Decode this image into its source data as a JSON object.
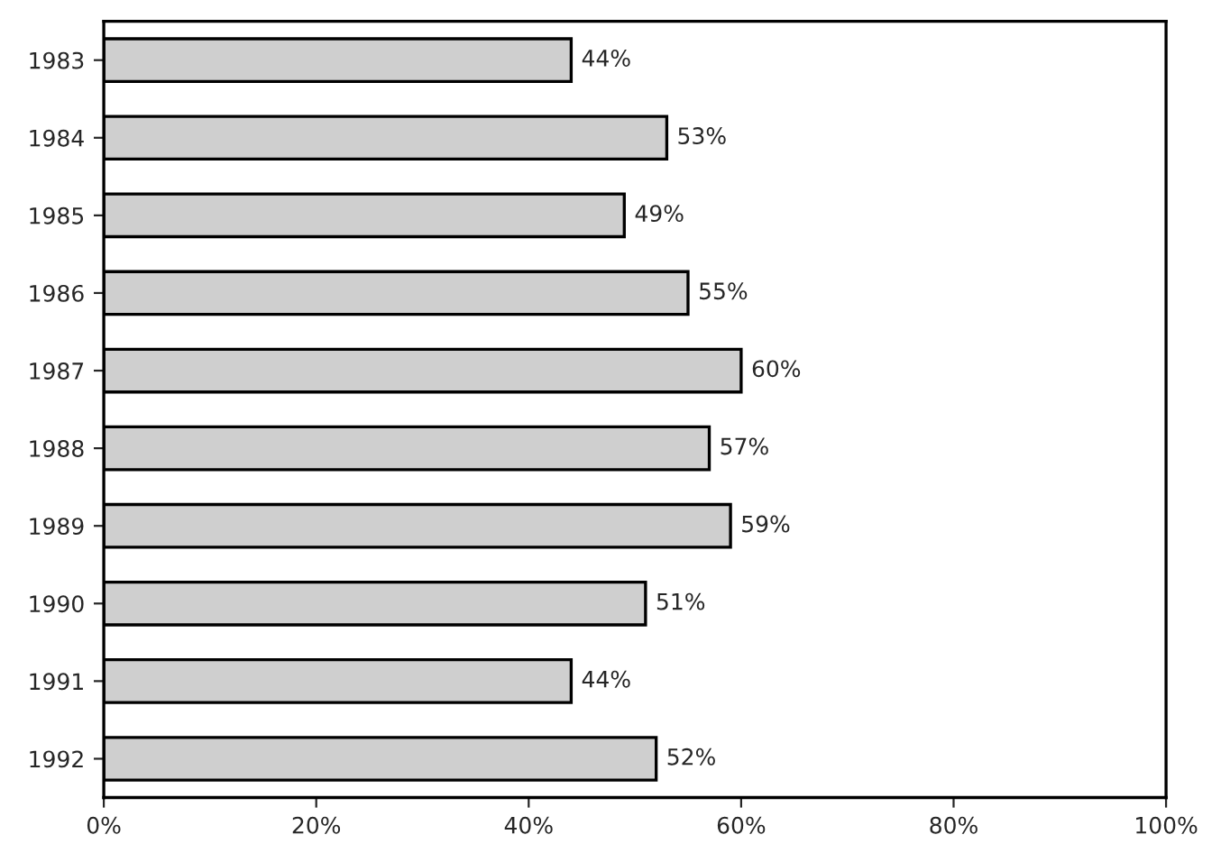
{
  "chart_data": {
    "type": "bar",
    "orientation": "horizontal",
    "categories": [
      "1983",
      "1984",
      "1985",
      "1986",
      "1987",
      "1988",
      "1989",
      "1990",
      "1991",
      "1992"
    ],
    "values": [
      44,
      53,
      49,
      55,
      60,
      57,
      59,
      51,
      44,
      52
    ],
    "value_labels": [
      "44%",
      "53%",
      "49%",
      "55%",
      "60%",
      "57%",
      "59%",
      "51%",
      "44%",
      "52%"
    ],
    "color": "#cfcfcf",
    "xlim": [
      0,
      100
    ],
    "xticks": [
      {
        "value": 0,
        "label": "0%"
      },
      {
        "value": 20,
        "label": "20%"
      },
      {
        "value": 40,
        "label": "40%"
      },
      {
        "value": 60,
        "label": "60%"
      },
      {
        "value": 80,
        "label": "80%"
      },
      {
        "value": 100,
        "label": "100%"
      }
    ],
    "grid": false,
    "legend": false
  }
}
